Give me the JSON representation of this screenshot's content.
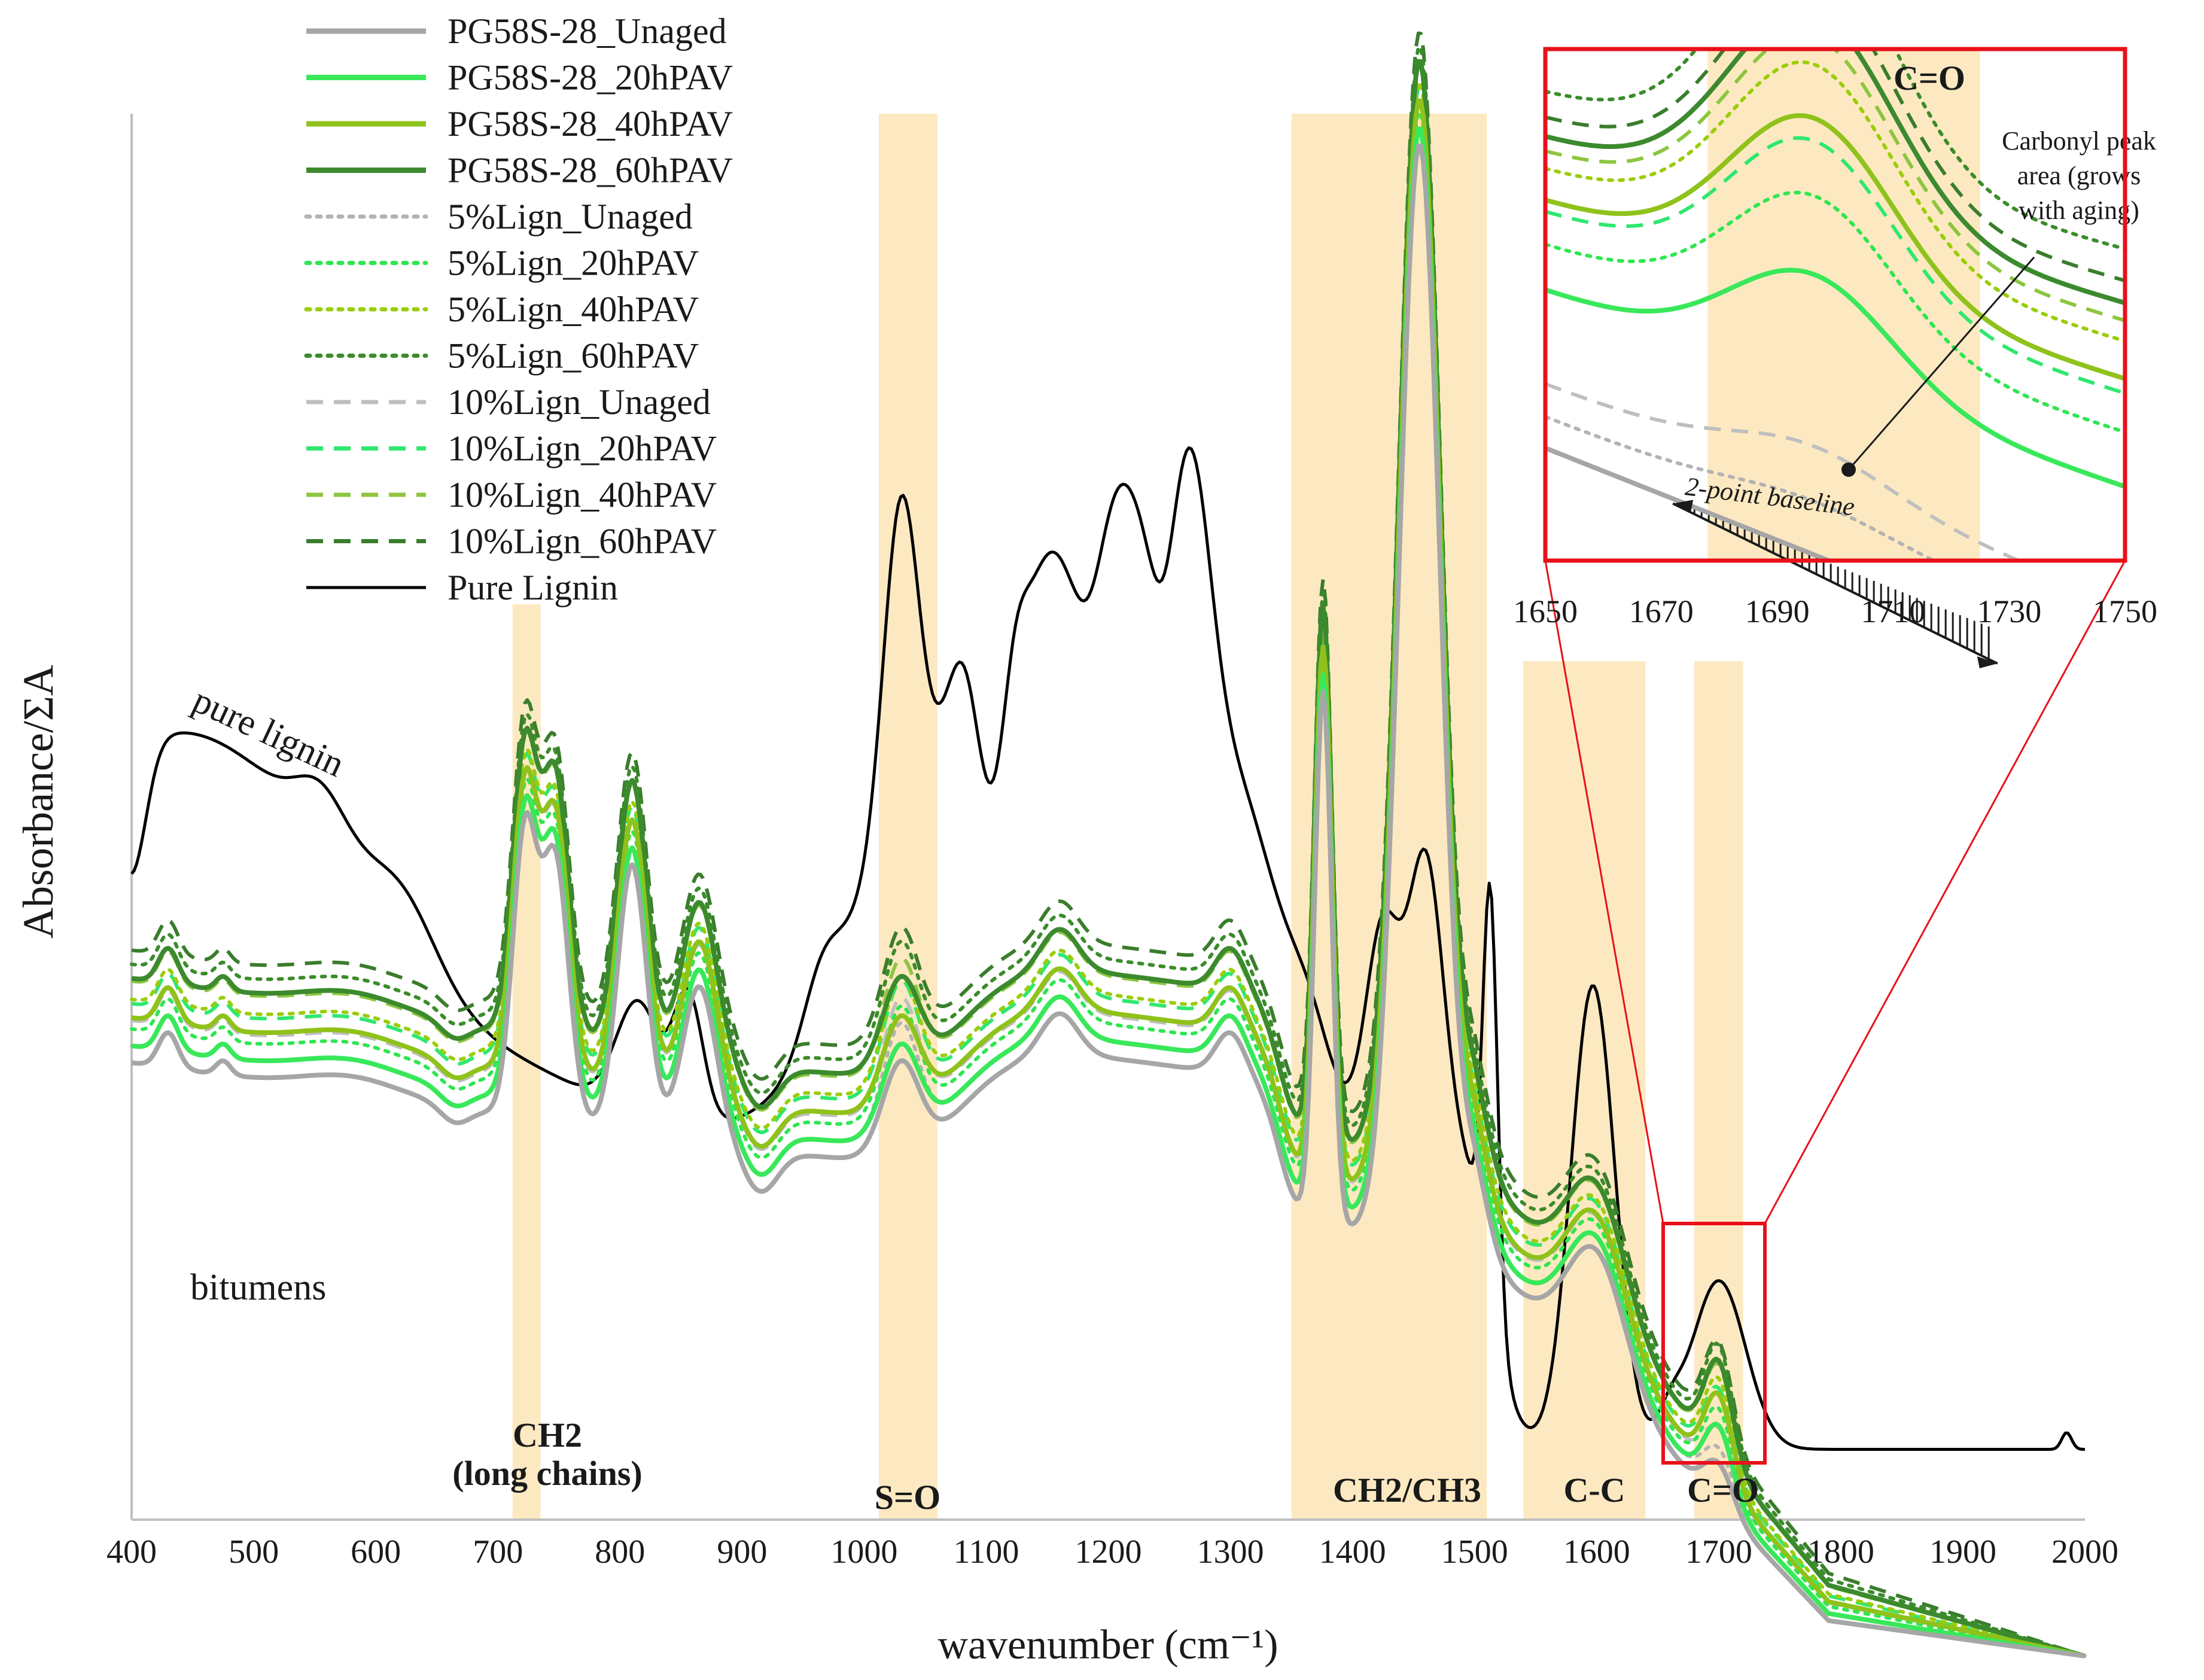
{
  "chart_data": {
    "type": "line",
    "title": "",
    "xlabel": "wavenumber (cm⁻¹)",
    "ylabel": "Absorbance/ΣA",
    "xlim": [
      400,
      2000
    ],
    "ylim": [
      0,
      1
    ],
    "xticks": [
      400,
      500,
      600,
      700,
      800,
      900,
      1000,
      1100,
      1200,
      1300,
      1400,
      1500,
      1600,
      1700,
      1800,
      1900,
      2000
    ],
    "grid": false,
    "legend_position": "top-left",
    "bands": [
      {
        "from": 712,
        "to": 735,
        "label": "CH2 (long chains)",
        "label_lines": [
          "CH2",
          "(long chains)"
        ]
      },
      {
        "from": 1012,
        "to": 1060,
        "label": "S=O",
        "label_lines": [
          "S=O"
        ]
      },
      {
        "from": 1350,
        "to": 1510,
        "label": "CH2/CH3",
        "label_lines": [
          "CH2/CH3"
        ]
      },
      {
        "from": 1540,
        "to": 1640,
        "label": "C-C",
        "label_lines": [
          "C-C"
        ]
      },
      {
        "from": 1680,
        "to": 1720,
        "label": "C=O",
        "label_lines": [
          "C=O"
        ]
      }
    ],
    "annotations": {
      "pure_lignin": "pure lignin",
      "bitumens": "bitumens"
    },
    "series": [
      {
        "name": "PG58S-28_Unaged",
        "color": "#a6a6a6",
        "style": "solid",
        "offset": 0.0,
        "carbonyl": 0.0
      },
      {
        "name": "PG58S-28_20hPAV",
        "color": "#39e85a",
        "style": "solid",
        "offset": 0.012,
        "carbonyl": 0.55
      },
      {
        "name": "PG58S-28_40hPAV",
        "color": "#8fc21a",
        "style": "solid",
        "offset": 0.032,
        "carbonyl": 0.85
      },
      {
        "name": "PG58S-28_60hPAV",
        "color": "#3c8a2e",
        "style": "solid",
        "offset": 0.06,
        "carbonyl": 1.05
      },
      {
        "name": "5%Lign_Unaged",
        "color": "#b3b3b3",
        "style": "dotted",
        "offset": 0.012,
        "carbonyl": 0.1
      },
      {
        "name": "5%Lign_20hPAV",
        "color": "#2fe650",
        "style": "dotted",
        "offset": 0.024,
        "carbonyl": 0.7
      },
      {
        "name": "5%Lign_40hPAV",
        "color": "#9acd0a",
        "style": "dotted",
        "offset": 0.045,
        "carbonyl": 0.95
      },
      {
        "name": "5%Lign_60hPAV",
        "color": "#3b8c2a",
        "style": "dotted",
        "offset": 0.07,
        "carbonyl": 1.2
      },
      {
        "name": "10%Lign_Unaged",
        "color": "#bfbfbf",
        "style": "dashed",
        "offset": 0.03,
        "carbonyl": 0.2
      },
      {
        "name": "10%Lign_20hPAV",
        "color": "#2ee86e",
        "style": "dashed",
        "offset": 0.042,
        "carbonyl": 0.8
      },
      {
        "name": "10%Lign_40hPAV",
        "color": "#8cc63f",
        "style": "dashed",
        "offset": 0.058,
        "carbonyl": 1.0
      },
      {
        "name": "10%Lign_60hPAV",
        "color": "#3a7d2c",
        "style": "dashed",
        "offset": 0.08,
        "carbonyl": 1.1
      },
      {
        "name": "Pure Lignin",
        "color": "#000000",
        "style": "solid",
        "offset": 0,
        "carbonyl": 0
      }
    ],
    "inset": {
      "xlim": [
        1650,
        1750
      ],
      "xticks": [
        1650,
        1670,
        1690,
        1710,
        1730,
        1750
      ],
      "highlight": {
        "from": 1678,
        "to": 1725
      },
      "label": "C=O",
      "annotation": "Carbonyl peak area (grows with aging)",
      "annotation_lines": [
        "Carbonyl peak",
        "area (grows",
        "with aging)"
      ],
      "baseline_label": "2-point baseline",
      "baseline_from": 1672,
      "baseline_to": 1728
    }
  }
}
